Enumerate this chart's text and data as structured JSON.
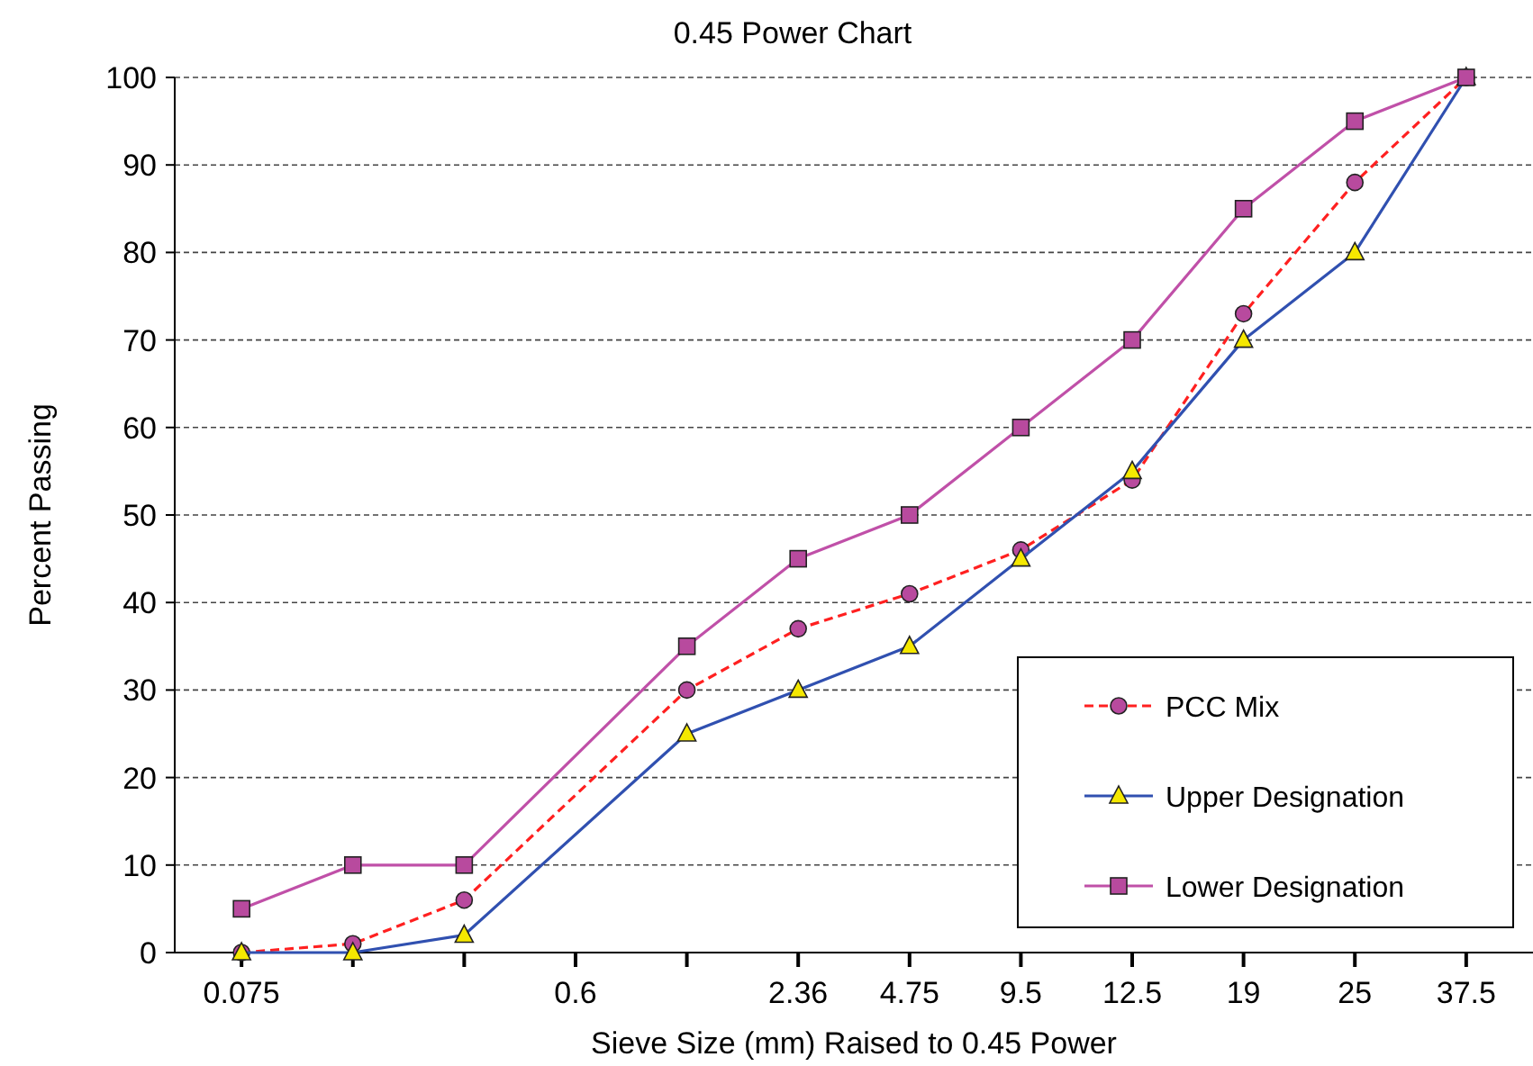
{
  "chart_data": {
    "type": "line",
    "title": "0.45 Power Chart",
    "xlabel": "Sieve Size (mm) Raised to 0.45 Power",
    "ylabel": "Percent Passing",
    "categories": [
      "0.075",
      null,
      null,
      "0.6",
      null,
      "2.36",
      "4.75",
      "9.5",
      "12.5",
      "19",
      "25",
      "37.5"
    ],
    "ylim": [
      0,
      100
    ],
    "yticks": [
      0,
      10,
      20,
      30,
      40,
      50,
      60,
      70,
      80,
      90,
      100
    ],
    "grid": "y",
    "legend": "bottom right",
    "series": [
      {
        "name": "PCC Mix",
        "color": "#ff2020",
        "marker": "circle",
        "line_style": "dashed",
        "values": [
          0,
          1,
          6,
          null,
          30,
          37,
          41,
          46,
          54,
          73,
          88,
          100
        ]
      },
      {
        "name": "Upper Designation",
        "color": "#3050b0",
        "marker": "triangle",
        "line_style": "solid",
        "values": [
          0,
          0,
          2,
          null,
          25,
          30,
          35,
          45,
          55,
          70,
          80,
          100
        ]
      },
      {
        "name": "Lower Designation",
        "color": "#c050a8",
        "marker": "square",
        "line_style": "solid",
        "values": [
          5,
          10,
          10,
          null,
          35,
          45,
          50,
          60,
          70,
          85,
          95,
          100
        ]
      }
    ]
  }
}
